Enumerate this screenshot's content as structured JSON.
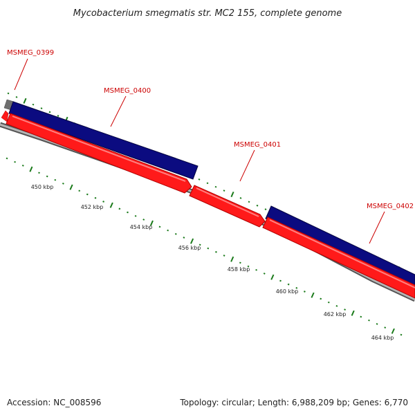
{
  "title": "Mycobacterium smegmatis str. MC2 155, complete genome",
  "footer": {
    "accession": "Accession: NC_008596",
    "summary": "Topology: circular; Length: 6,988,209 bp; Genes: 6,770"
  },
  "genes": [
    {
      "id": "MSMEG_0399"
    },
    {
      "id": "MSMEG_0400"
    },
    {
      "id": "MSMEG_0401"
    },
    {
      "id": "MSMEG_0402"
    }
  ],
  "scale_labels": [
    "450 kbp",
    "452 kbp",
    "454 kbp",
    "456 kbp",
    "458 kbp",
    "460 kbp",
    "462 kbp",
    "464 kbp"
  ],
  "colors": {
    "forward_cds": "#0b0b80",
    "reverse_cds": "#ff1a1a",
    "backbone": "#808080",
    "other_feature": "#707070",
    "tick": "#1a7a1a",
    "gene_label": "#cc0000"
  }
}
